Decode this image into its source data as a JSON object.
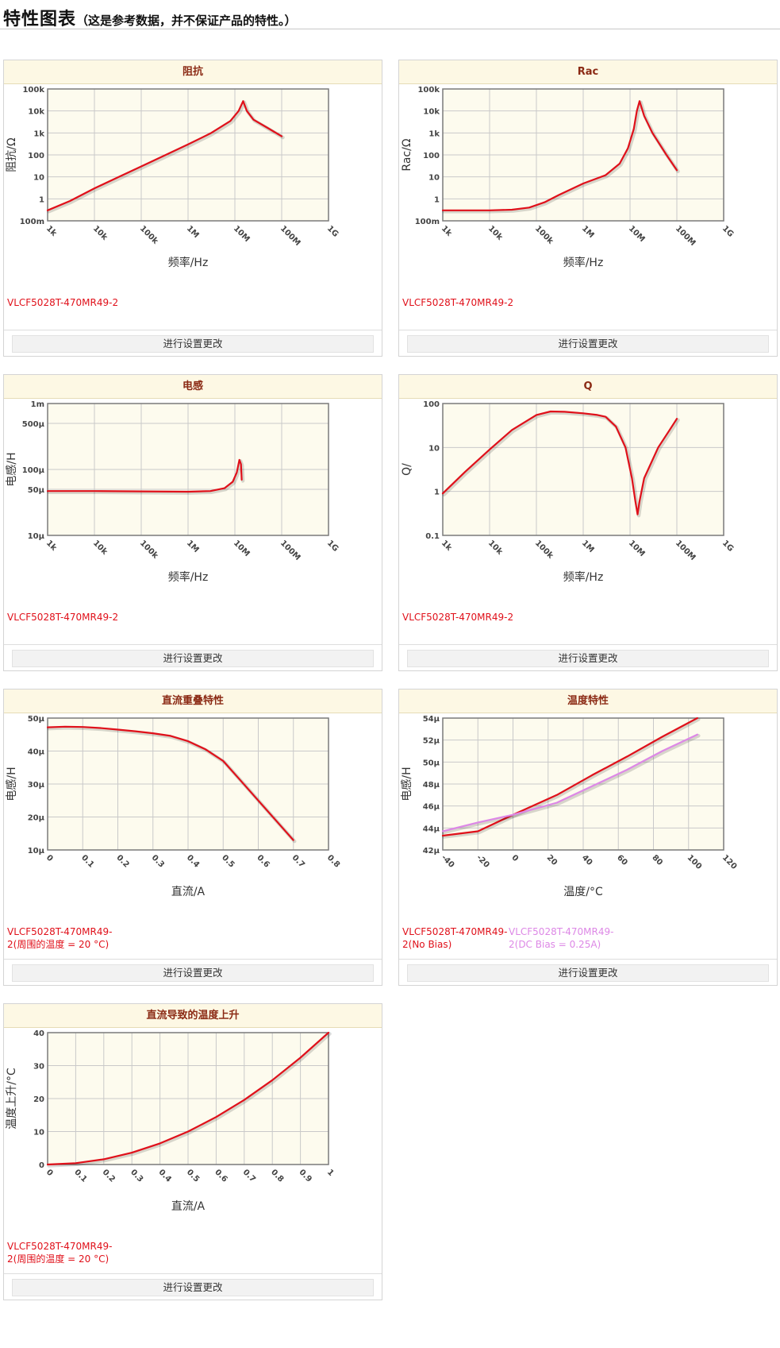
{
  "header": {
    "title": "特性图表",
    "subtitle": "（这是参考数据，并不保证产品的特性。）"
  },
  "settings_button_label": "进行设置更改",
  "chart_data": [
    {
      "id": "impedance",
      "type": "line",
      "title": "阻抗",
      "xlabel": "频率/Hz",
      "ylabel": "阻抗/Ω",
      "xscale": "log",
      "yscale": "log",
      "xlim": [
        1000,
        1000000000
      ],
      "ylim": [
        0.1,
        100000
      ],
      "xticks": [
        1000,
        10000,
        100000,
        1000000,
        10000000,
        100000000,
        1000000000
      ],
      "xtick_labels": [
        "1k",
        "10k",
        "100k",
        "1M",
        "10M",
        "100M",
        "1G"
      ],
      "yticks": [
        0.1,
        1,
        10,
        100,
        1000,
        10000,
        100000
      ],
      "ytick_labels": [
        "100m",
        "1",
        "10",
        "100",
        "1k",
        "10k",
        "100k"
      ],
      "grid": true,
      "series": [
        {
          "name": "VLCF5028T-470MR49-2",
          "color": "#e0101a",
          "x": [
            1000,
            3000,
            10000,
            30000,
            100000,
            300000,
            1000000,
            3000000,
            8000000,
            12000000,
            15000000,
            18000000,
            25000000,
            50000000,
            100000000
          ],
          "y": [
            0.3,
            0.8,
            3,
            9,
            30,
            90,
            300,
            950,
            3500,
            10000,
            28000,
            10000,
            4000,
            1700,
            700
          ]
        }
      ],
      "legend": [
        {
          "text": "VLCF5028T-470MR49-2",
          "color": "#e0101a"
        }
      ]
    },
    {
      "id": "rac",
      "type": "line",
      "title": "Rac",
      "xlabel": "频率/Hz",
      "ylabel": "Rac/Ω",
      "xscale": "log",
      "yscale": "log",
      "xlim": [
        1000,
        1000000000
      ],
      "ylim": [
        0.1,
        100000
      ],
      "xticks": [
        1000,
        10000,
        100000,
        1000000,
        10000000,
        100000000,
        1000000000
      ],
      "xtick_labels": [
        "1k",
        "10k",
        "100k",
        "1M",
        "10M",
        "100M",
        "1G"
      ],
      "yticks": [
        0.1,
        1,
        10,
        100,
        1000,
        10000,
        100000
      ],
      "ytick_labels": [
        "100m",
        "1",
        "10",
        "100",
        "1k",
        "10k",
        "100k"
      ],
      "grid": true,
      "series": [
        {
          "name": "VLCF5028T-470MR49-2",
          "color": "#e0101a",
          "x": [
            1000,
            10000,
            30000,
            70000,
            150000,
            300000,
            1000000,
            3000000,
            6000000,
            9000000,
            12000000,
            14000000,
            16000000,
            20000000,
            30000000,
            60000000,
            100000000
          ],
          "y": [
            0.3,
            0.3,
            0.32,
            0.4,
            0.7,
            1.5,
            5,
            12,
            40,
            200,
            1500,
            10000,
            28000,
            6000,
            1000,
            100,
            20
          ]
        }
      ],
      "legend": [
        {
          "text": "VLCF5028T-470MR49-2",
          "color": "#e0101a"
        }
      ]
    },
    {
      "id": "inductance",
      "type": "line",
      "title": "电感",
      "xlabel": "频率/Hz",
      "ylabel": "电感/H",
      "xscale": "log",
      "yscale": "log",
      "xlim": [
        1000,
        1000000000
      ],
      "ylim": [
        1e-05,
        0.001
      ],
      "xticks": [
        1000,
        10000,
        100000,
        1000000,
        10000000,
        100000000,
        1000000000
      ],
      "xtick_labels": [
        "1k",
        "10k",
        "100k",
        "1M",
        "10M",
        "100M",
        "1G"
      ],
      "yticks": [
        1e-05,
        5e-05,
        0.0001,
        0.0005,
        0.001
      ],
      "ytick_labels": [
        "10μ",
        "50μ",
        "100μ",
        "500μ",
        "1m"
      ],
      "grid": true,
      "series": [
        {
          "name": "VLCF5028T-470MR49-2",
          "color": "#e0101a",
          "x": [
            1000,
            10000,
            100000,
            1000000,
            3000000,
            6000000,
            9000000,
            11000000,
            12500000,
            13500000,
            14000000
          ],
          "y": [
            4.7e-05,
            4.7e-05,
            4.65e-05,
            4.6e-05,
            4.7e-05,
            5.2e-05,
            6.5e-05,
            9e-05,
            0.00014,
            0.00012,
            7e-05
          ]
        }
      ],
      "legend": [
        {
          "text": "VLCF5028T-470MR49-2",
          "color": "#e0101a"
        }
      ]
    },
    {
      "id": "q",
      "type": "line",
      "title": "Q",
      "xlabel": "频率/Hz",
      "ylabel": "Q/",
      "xscale": "log",
      "yscale": "log",
      "xlim": [
        1000,
        1000000000
      ],
      "ylim": [
        0.1,
        100
      ],
      "xticks": [
        1000,
        10000,
        100000,
        1000000,
        10000000,
        100000000,
        1000000000
      ],
      "xtick_labels": [
        "1k",
        "10k",
        "100k",
        "1M",
        "10M",
        "100M",
        "1G"
      ],
      "yticks": [
        0.1,
        1,
        10,
        100
      ],
      "ytick_labels": [
        "0.1",
        "1",
        "10",
        "100"
      ],
      "grid": true,
      "series": [
        {
          "name": "VLCF5028T-470MR49-2",
          "color": "#e0101a",
          "x": [
            1000,
            3000,
            10000,
            30000,
            100000,
            200000,
            400000,
            1000000,
            2000000,
            3000000,
            5000000,
            8000000,
            11000000,
            13000000,
            14500000,
            16000000,
            20000000,
            40000000,
            70000000,
            100000000
          ],
          "y": [
            0.9,
            2.8,
            9,
            25,
            55,
            66,
            65,
            60,
            55,
            50,
            30,
            10,
            2,
            0.6,
            0.3,
            0.6,
            2,
            10,
            25,
            45
          ]
        }
      ],
      "legend": [
        {
          "text": "VLCF5028T-470MR49-2",
          "color": "#e0101a"
        }
      ]
    },
    {
      "id": "dc-bias",
      "type": "line",
      "title": "直流重叠特性",
      "xlabel": "直流/A",
      "ylabel": "电感/H",
      "xscale": "linear",
      "yscale": "linear",
      "xlim": [
        0,
        0.8
      ],
      "ylim": [
        1e-05,
        5e-05
      ],
      "xticks": [
        0,
        0.1,
        0.2,
        0.3,
        0.4,
        0.5,
        0.6,
        0.7,
        0.8
      ],
      "xtick_labels": [
        "0",
        "0.1",
        "0.2",
        "0.3",
        "0.4",
        "0.5",
        "0.6",
        "0.7",
        "0.8"
      ],
      "yticks": [
        1e-05,
        2e-05,
        3e-05,
        4e-05,
        5e-05
      ],
      "ytick_labels": [
        "10μ",
        "20μ",
        "30μ",
        "40μ",
        "50μ"
      ],
      "grid": true,
      "series": [
        {
          "name": "VLCF5028T-470MR49-2(周围的温度 = 20 °C)",
          "color": "#e0101a",
          "x": [
            0,
            0.05,
            0.1,
            0.15,
            0.2,
            0.25,
            0.3,
            0.35,
            0.4,
            0.45,
            0.5,
            0.55,
            0.6,
            0.65,
            0.7
          ],
          "y": [
            4.72e-05,
            4.74e-05,
            4.73e-05,
            4.7e-05,
            4.65e-05,
            4.6e-05,
            4.54e-05,
            4.46e-05,
            4.3e-05,
            4.05e-05,
            3.7e-05,
            3.1e-05,
            2.5e-05,
            1.9e-05,
            1.3e-05
          ]
        }
      ],
      "legend": [
        {
          "text": "VLCF5028T-470MR49-2(周围的温度 = 20 °C)",
          "color": "#e0101a"
        }
      ]
    },
    {
      "id": "temperature",
      "type": "line",
      "title": "温度特性",
      "xlabel": "温度/°C",
      "ylabel": "电感/H",
      "xscale": "linear",
      "yscale": "linear",
      "xlim": [
        -40,
        120
      ],
      "ylim": [
        4.2e-05,
        5.4e-05
      ],
      "xticks": [
        -40,
        -20,
        0,
        20,
        40,
        60,
        80,
        100,
        120
      ],
      "xtick_labels": [
        "-40",
        "-20",
        "0",
        "20",
        "40",
        "60",
        "80",
        "100",
        "120"
      ],
      "yticks": [
        4.2e-05,
        4.4e-05,
        4.6e-05,
        4.8e-05,
        5e-05,
        5.2e-05,
        5.4e-05
      ],
      "ytick_labels": [
        "42μ",
        "44μ",
        "46μ",
        "48μ",
        "50μ",
        "52μ",
        "54μ"
      ],
      "grid": true,
      "series": [
        {
          "name": "VLCF5028T-470MR49-2(No Bias)",
          "color": "#e0101a",
          "x": [
            -40,
            -20,
            0,
            25,
            45,
            65,
            85,
            105
          ],
          "y": [
            4.33e-05,
            4.37e-05,
            4.52e-05,
            4.7e-05,
            4.88e-05,
            5.05e-05,
            5.23e-05,
            5.4e-05
          ]
        },
        {
          "name": "VLCF5028T-470MR49-2(DC Bias = 0.25A)",
          "color": "#dd88e6",
          "x": [
            -40,
            -20,
            0,
            25,
            45,
            65,
            85,
            105
          ],
          "y": [
            4.37e-05,
            4.45e-05,
            4.52e-05,
            4.63e-05,
            4.78e-05,
            4.93e-05,
            5.1e-05,
            5.25e-05
          ]
        }
      ],
      "legend": [
        {
          "text": "VLCF5028T-470MR49-2(No Bias)",
          "color": "#e0101a"
        },
        {
          "text": "VLCF5028T-470MR49-2(DC Bias = 0.25A)",
          "color": "#dd88e6"
        }
      ]
    },
    {
      "id": "temp-rise",
      "type": "line",
      "title": "直流导致的温度上升",
      "xlabel": "直流/A",
      "ylabel": "温度上升/°C",
      "xscale": "linear",
      "yscale": "linear",
      "xlim": [
        0,
        1
      ],
      "ylim": [
        0,
        40
      ],
      "xticks": [
        0,
        0.1,
        0.2,
        0.3,
        0.4,
        0.5,
        0.6,
        0.7,
        0.8,
        0.9,
        1
      ],
      "xtick_labels": [
        "0",
        "0.1",
        "0.2",
        "0.3",
        "0.4",
        "0.5",
        "0.6",
        "0.7",
        "0.8",
        "0.9",
        "1"
      ],
      "yticks": [
        0,
        10,
        20,
        30,
        40
      ],
      "ytick_labels": [
        "0",
        "10",
        "20",
        "30",
        "40"
      ],
      "grid": true,
      "series": [
        {
          "name": "VLCF5028T-470MR49-2(周围的温度 = 20 °C)",
          "color": "#e0101a",
          "x": [
            0,
            0.1,
            0.2,
            0.3,
            0.4,
            0.5,
            0.6,
            0.7,
            0.8,
            0.9,
            1
          ],
          "y": [
            0,
            0.4,
            1.6,
            3.6,
            6.4,
            10,
            14.4,
            19.6,
            25.6,
            32.4,
            40
          ]
        }
      ],
      "legend": [
        {
          "text": "VLCF5028T-470MR49-2(周围的温度 = 20 °C)",
          "color": "#e0101a"
        }
      ]
    }
  ]
}
